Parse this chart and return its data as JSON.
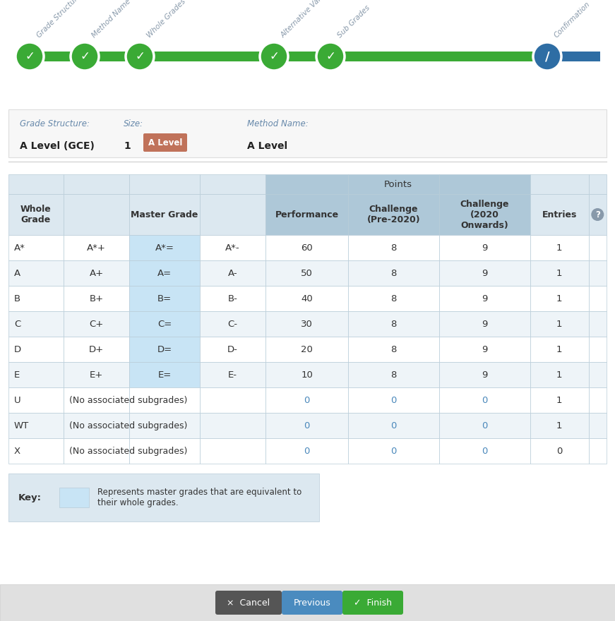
{
  "bg_color": "#ffffff",
  "green_color": "#3aaa35",
  "blue_color": "#2e6da4",
  "step_labels": [
    "Grade Structure",
    "Method Name",
    "Whole Grades",
    "Alternative Values",
    "Sub Grades",
    "Confirmation"
  ],
  "info_bg": "#f7f7f7",
  "info_border": "#dddddd",
  "grade_structure_label": "Grade Structure:",
  "grade_structure_value": "A Level (GCE)",
  "size_label": "Size:",
  "size_value": "1",
  "badge_text": "A Level",
  "badge_bg": "#c0725a",
  "badge_fg": "#ffffff",
  "method_name_label": "Method Name:",
  "method_name_value": "A Level",
  "label_color": "#6688aa",
  "value_color": "#222222",
  "table_header_bg": "#aec8d8",
  "table_light_bg": "#dce8f0",
  "table_highlight_bg": "#c8e4f5",
  "table_border": "#b8ccd8",
  "table_row_even": "#ffffff",
  "table_row_odd": "#eef4f8",
  "rows": [
    [
      "A*",
      "A*+",
      "A*=",
      "A*-",
      "60",
      "8",
      "9",
      "1"
    ],
    [
      "A",
      "A+",
      "A=",
      "A-",
      "50",
      "8",
      "9",
      "1"
    ],
    [
      "B",
      "B+",
      "B=",
      "B-",
      "40",
      "8",
      "9",
      "1"
    ],
    [
      "C",
      "C+",
      "C=",
      "C-",
      "30",
      "8",
      "9",
      "1"
    ],
    [
      "D",
      "D+",
      "D=",
      "D-",
      "20",
      "8",
      "9",
      "1"
    ],
    [
      "E",
      "E+",
      "E=",
      "E-",
      "10",
      "8",
      "9",
      "1"
    ],
    [
      "U",
      "NO_SUB",
      "",
      "",
      "0",
      "0",
      "0",
      "1"
    ],
    [
      "WT",
      "NO_SUB",
      "",
      "",
      "0",
      "0",
      "0",
      "1"
    ],
    [
      "X",
      "NO_SUB",
      "",
      "",
      "0",
      "0",
      "0",
      "0"
    ]
  ],
  "no_sub_text": "(No associated subgrades)",
  "zero_color": "#4a88bb",
  "key_label_bg": "#dce8f0",
  "key_swatch_bg": "#c8e4f5",
  "key_text": "Represents master grades that are equivalent to\ntheir whole grades.",
  "btn_bar_bg": "#e0e0e0",
  "btn_cancel_bg": "#555555",
  "btn_cancel_text": "×  Cancel",
  "btn_prev_bg": "#4a8bbf",
  "btn_prev_text": "Previous",
  "btn_finish_bg": "#3aaa35",
  "btn_finish_text": "✓  Finish"
}
